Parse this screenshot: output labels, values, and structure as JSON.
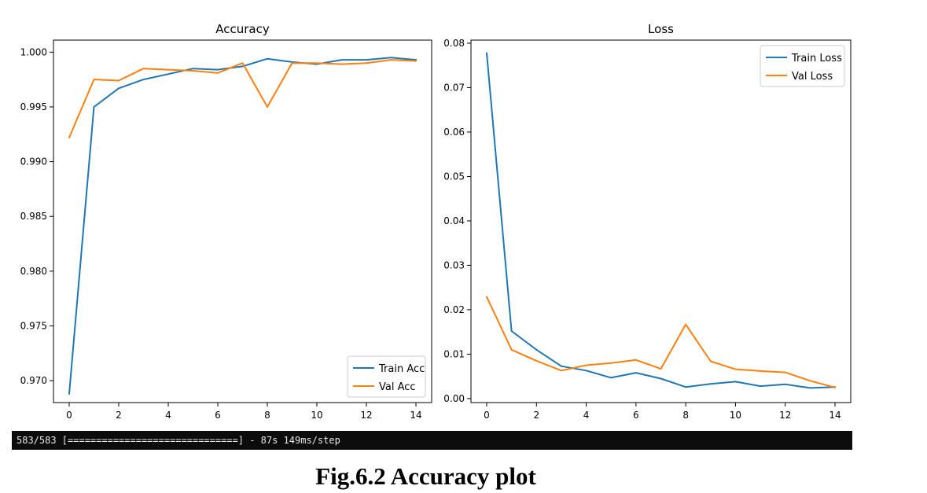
{
  "chart_data": [
    {
      "type": "line",
      "title": "Accuracy",
      "xlabel": "",
      "ylabel": "",
      "xlim": [
        0,
        14
      ],
      "ylim": [
        0.968,
        1.0011
      ],
      "xticks": [
        0,
        2,
        4,
        6,
        8,
        10,
        12,
        14
      ],
      "yticks": [
        0.97,
        0.975,
        0.98,
        0.985,
        0.99,
        0.995,
        1.0
      ],
      "ytick_labels": [
        "0.970",
        "0.975",
        "0.980",
        "0.985",
        "0.990",
        "0.995",
        "1.000"
      ],
      "grid": false,
      "legend_position": "bottom-right",
      "x": [
        0,
        1,
        2,
        3,
        4,
        5,
        6,
        7,
        8,
        9,
        10,
        11,
        12,
        13,
        14
      ],
      "series": [
        {
          "name": "Train Acc",
          "color": "#1f77b4",
          "values": [
            0.9688,
            0.995,
            0.9967,
            0.9975,
            0.998,
            0.9985,
            0.9984,
            0.9987,
            0.9994,
            0.9991,
            0.9989,
            0.9993,
            0.9993,
            0.9995,
            0.9993
          ]
        },
        {
          "name": "Val Acc",
          "color": "#ff7f0e",
          "values": [
            0.9922,
            0.9975,
            0.9974,
            0.9985,
            0.9984,
            0.9983,
            0.9981,
            0.999,
            0.995,
            0.999,
            0.999,
            0.9989,
            0.999,
            0.9993,
            0.9992
          ]
        }
      ]
    },
    {
      "type": "line",
      "title": "Loss",
      "xlabel": "",
      "ylabel": "",
      "xlim": [
        0,
        14
      ],
      "ylim": [
        -0.0009,
        0.0807
      ],
      "xticks": [
        0,
        2,
        4,
        6,
        8,
        10,
        12,
        14
      ],
      "yticks": [
        0.0,
        0.01,
        0.02,
        0.03,
        0.04,
        0.05,
        0.06,
        0.07,
        0.08
      ],
      "ytick_labels": [
        "0.00",
        "0.01",
        "0.02",
        "0.03",
        "0.04",
        "0.05",
        "0.06",
        "0.07",
        "0.08"
      ],
      "grid": false,
      "legend_position": "top-right",
      "x": [
        0,
        1,
        2,
        3,
        4,
        5,
        6,
        7,
        8,
        9,
        10,
        11,
        12,
        13,
        14
      ],
      "series": [
        {
          "name": "Train Loss",
          "color": "#1f77b4",
          "values": [
            0.0778,
            0.0152,
            0.011,
            0.0073,
            0.0063,
            0.0047,
            0.0058,
            0.0045,
            0.0026,
            0.0033,
            0.0038,
            0.0028,
            0.0032,
            0.0024,
            0.0026
          ]
        },
        {
          "name": "Val Loss",
          "color": "#ff7f0e",
          "values": [
            0.0229,
            0.011,
            0.0085,
            0.0063,
            0.0075,
            0.008,
            0.0087,
            0.0067,
            0.0167,
            0.0084,
            0.0066,
            0.0062,
            0.0059,
            0.004,
            0.0025
          ]
        }
      ]
    }
  ],
  "console": {
    "text": "583/583 [==============================] - 87s 149ms/step"
  },
  "caption": "Fig.6.2 Accuracy plot"
}
